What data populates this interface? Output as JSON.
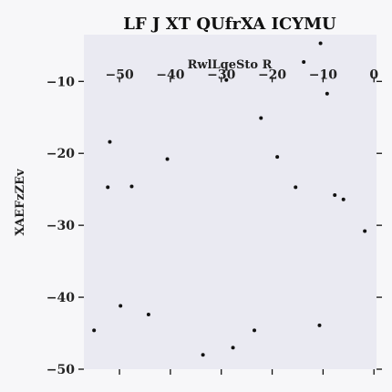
{
  "chart_data": {
    "type": "scatter",
    "title": "LF J XT QUfrXA ICYMU",
    "xlabel": "RwlLqeSto R",
    "ylabel": "XAEFzZEv",
    "xlim": [
      -57,
      0.5
    ],
    "ylim": [
      -50,
      -3.5
    ],
    "xticks": [
      -50,
      -40,
      -30,
      -20,
      -10,
      0
    ],
    "yticks": [
      -10,
      -20,
      -30,
      -40,
      -50
    ],
    "x_axis_position": "top-inside",
    "grid": false,
    "series": [
      {
        "points": [
          {
            "x": -10.5,
            "y": -4.7
          },
          {
            "x": -13.8,
            "y": -7.3
          },
          {
            "x": -29.0,
            "y": -9.8
          },
          {
            "x": -9.2,
            "y": -11.7
          },
          {
            "x": -22.2,
            "y": -15.1
          },
          {
            "x": -51.9,
            "y": -18.4
          },
          {
            "x": -19.0,
            "y": -20.5
          },
          {
            "x": -40.6,
            "y": -20.8
          },
          {
            "x": -52.3,
            "y": -24.7
          },
          {
            "x": -47.6,
            "y": -24.6
          },
          {
            "x": -15.4,
            "y": -24.7
          },
          {
            "x": -7.7,
            "y": -25.8
          },
          {
            "x": -6.0,
            "y": -26.4
          },
          {
            "x": -1.8,
            "y": -30.8
          },
          {
            "x": -49.8,
            "y": -41.2
          },
          {
            "x": -44.3,
            "y": -42.4
          },
          {
            "x": -55.0,
            "y": -44.6
          },
          {
            "x": -23.5,
            "y": -44.6
          },
          {
            "x": -10.7,
            "y": -43.9
          },
          {
            "x": -33.6,
            "y": -48.0
          },
          {
            "x": -27.7,
            "y": -47.0
          }
        ]
      }
    ]
  }
}
